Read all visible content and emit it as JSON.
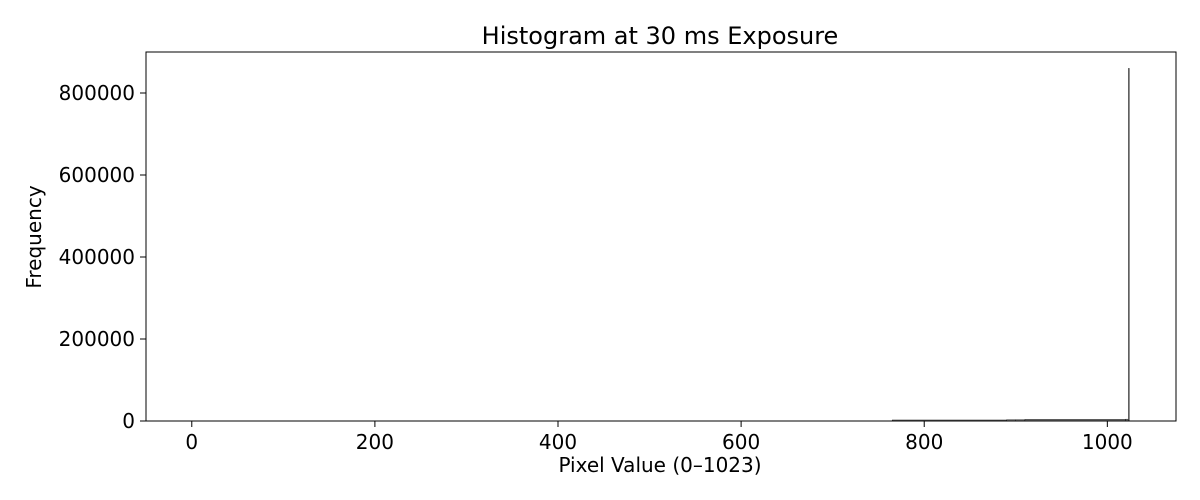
{
  "chart_data": {
    "type": "bar",
    "title": "Histogram at 30 ms Exposure",
    "xlabel": "Pixel Value (0–1023)",
    "ylabel": "Frequency",
    "xlim": [
      -50,
      1075
    ],
    "ylim": [
      0,
      900000
    ],
    "xticks": [
      0,
      200,
      400,
      600,
      800,
      1000
    ],
    "yticks": [
      0,
      200000,
      400000,
      600000,
      800000
    ],
    "grid": false,
    "legend": "none",
    "bar_color": "#808080",
    "edge_color": "#000000",
    "bins": [
      {
        "x": 765,
        "width": 125,
        "value": 2500
      },
      {
        "x": 890,
        "width": 10,
        "value": 3000
      },
      {
        "x": 900,
        "width": 10,
        "value": 3200
      },
      {
        "x": 910,
        "width": 110,
        "value": 4000
      },
      {
        "x": 1020,
        "width": 3,
        "value": 4500
      },
      {
        "x": 1023,
        "width": 1,
        "value": 860000
      }
    ]
  }
}
